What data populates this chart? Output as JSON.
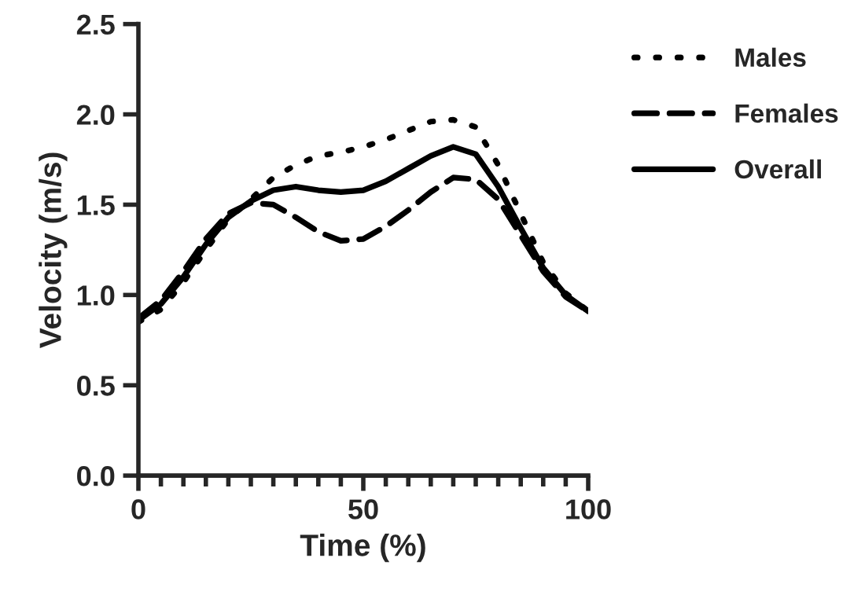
{
  "chart_data": {
    "type": "line",
    "xlabel": "Time (%)",
    "ylabel": "Velocity (m/s)",
    "x": [
      0,
      5,
      10,
      15,
      20,
      25,
      30,
      35,
      40,
      45,
      50,
      55,
      60,
      65,
      70,
      75,
      80,
      85,
      90,
      95,
      100
    ],
    "series": [
      {
        "name": "Males",
        "color": "#000000",
        "line_style": "dotted",
        "values": [
          0.85,
          0.92,
          1.07,
          1.25,
          1.42,
          1.53,
          1.65,
          1.72,
          1.77,
          1.79,
          1.82,
          1.86,
          1.91,
          1.96,
          1.97,
          1.93,
          1.72,
          1.45,
          1.18,
          1.01,
          0.91
        ]
      },
      {
        "name": "Females",
        "color": "#000000",
        "line_style": "dashed",
        "values": [
          0.87,
          0.97,
          1.13,
          1.31,
          1.45,
          1.51,
          1.5,
          1.43,
          1.35,
          1.3,
          1.31,
          1.38,
          1.47,
          1.57,
          1.65,
          1.64,
          1.53,
          1.33,
          1.13,
          0.99,
          0.91
        ]
      },
      {
        "name": "Overall",
        "color": "#000000",
        "line_style": "solid",
        "values": [
          0.86,
          0.95,
          1.1,
          1.28,
          1.43,
          1.52,
          1.58,
          1.6,
          1.58,
          1.57,
          1.58,
          1.63,
          1.7,
          1.77,
          1.82,
          1.78,
          1.6,
          1.37,
          1.15,
          1.0,
          0.91
        ]
      }
    ],
    "xlim": [
      0,
      100
    ],
    "ylim": [
      0,
      2.5
    ],
    "xticks": [
      0,
      50,
      100
    ],
    "yticks": [
      {
        "value": 0,
        "label": "0.0"
      },
      0.5,
      {
        "value": 1,
        "label": "1.0"
      },
      1.5,
      {
        "value": 2,
        "label": "2.0"
      },
      2.5
    ],
    "legend": "right",
    "grid": false,
    "marker": "none"
  }
}
